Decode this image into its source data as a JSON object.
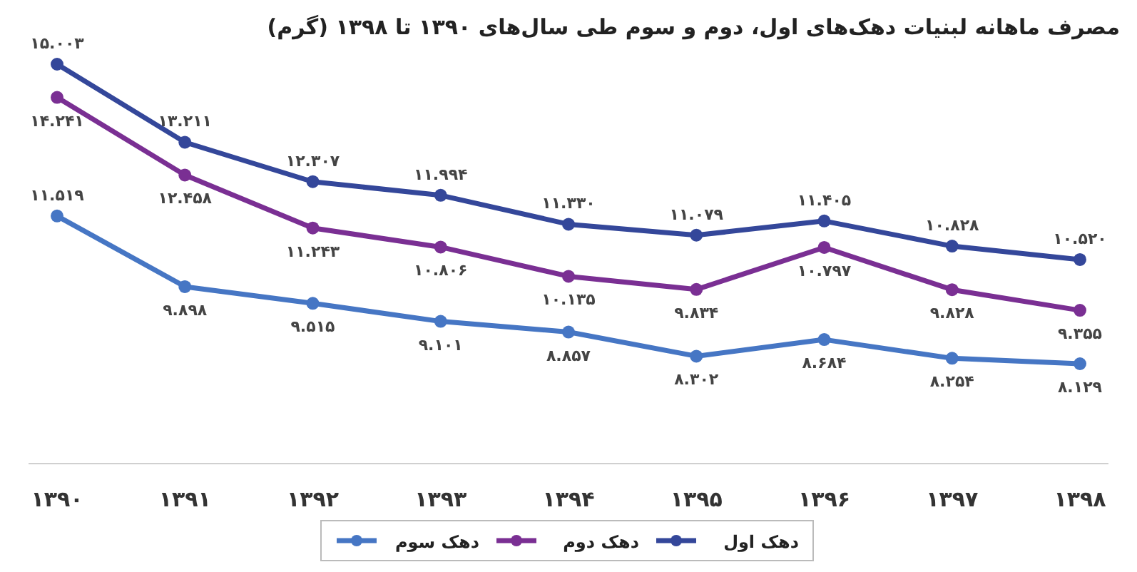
{
  "chart_data": {
    "type": "line",
    "title": "مصرف ماهانه لبنیات دهک‌های اول، دوم و سوم طی سال‌های ۱۳۹۰ تا ۱۳۹۸ (گرم)",
    "categories": [
      "۱۳۹۰",
      "۱۳۹۱",
      "۱۳۹۲",
      "۱۳۹۳",
      "۱۳۹۴",
      "۱۳۹۵",
      "۱۳۹۶",
      "۱۳۹۷",
      "۱۳۹۸"
    ],
    "series": [
      {
        "name": "دهک اول",
        "color": "#34479a",
        "values": [
          15.003,
          13.211,
          12.307,
          11.994,
          11.33,
          11.079,
          11.405,
          10.828,
          10.52
        ],
        "value_labels": [
          "۱۵.۰۰۳",
          "۱۳.۲۱۱",
          "۱۲.۳۰۷",
          "۱۱.۹۹۴",
          "۱۱.۳۳۰",
          "۱۱.۰۷۹",
          "۱۱.۴۰۵",
          "۱۰.۸۲۸",
          "۱۰.۵۲۰"
        ]
      },
      {
        "name": "دهک دوم",
        "color": "#7a2f93",
        "values": [
          14.241,
          12.458,
          11.243,
          10.806,
          10.135,
          9.834,
          10.797,
          9.828,
          9.355
        ],
        "value_labels": [
          "۱۴.۲۴۱",
          "۱۲.۴۵۸",
          "۱۱.۲۴۳",
          "۱۰.۸۰۶",
          "۱۰.۱۳۵",
          "۹.۸۳۴",
          "۱۰.۷۹۷",
          "۹.۸۲۸",
          "۹.۳۵۵"
        ]
      },
      {
        "name": "دهک سوم",
        "color": "#4676c4",
        "values": [
          11.519,
          9.898,
          9.515,
          9.101,
          8.857,
          8.302,
          8.684,
          8.254,
          8.129
        ],
        "value_labels": [
          "۱۱.۵۱۹",
          "۹.۸۹۸",
          "۹.۵۱۵",
          "۹.۱۰۱",
          "۸.۸۵۷",
          "۸.۳۰۲",
          "۸.۶۸۴",
          "۸.۲۵۴",
          "۸.۱۲۹"
        ]
      }
    ],
    "marker": "circle",
    "legend": "bottom"
  }
}
